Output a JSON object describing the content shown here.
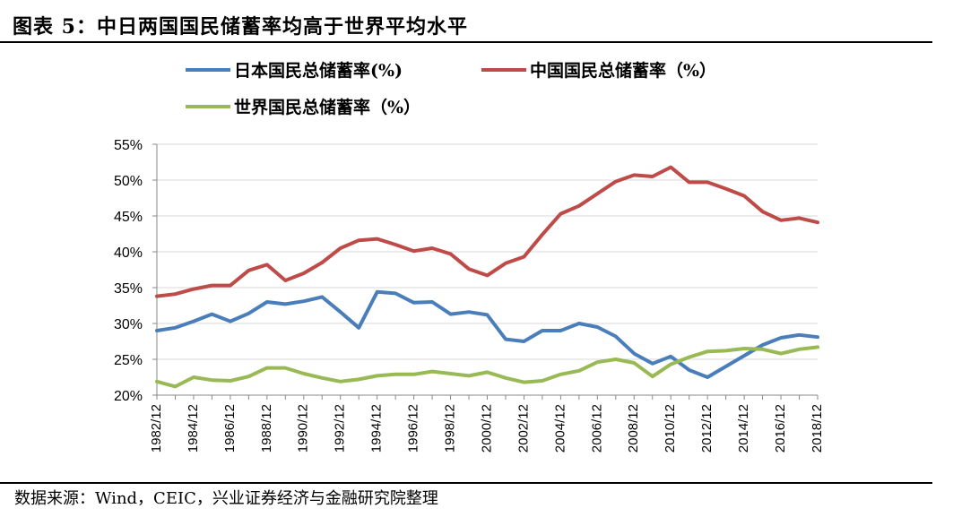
{
  "figure": {
    "title": "图表 5：中日两国国民储蓄率均高于世界平均水平",
    "source": "数据来源：Wind，CEIC，兴业证券经济与金融研究院整理"
  },
  "colors": {
    "japan": "#4a7ebb",
    "china": "#be4b48",
    "world": "#98b954",
    "grid": "#d9d9d9",
    "axis": "#888888"
  },
  "chart_data": {
    "type": "line",
    "x": [
      1982,
      1983,
      1984,
      1985,
      1986,
      1987,
      1988,
      1989,
      1990,
      1991,
      1992,
      1993,
      1994,
      1995,
      1996,
      1997,
      1998,
      1999,
      2000,
      2001,
      2002,
      2003,
      2004,
      2005,
      2006,
      2007,
      2008,
      2009,
      2010,
      2011,
      2012,
      2013,
      2014,
      2015,
      2016,
      2017,
      2018
    ],
    "xtick_labels": [
      "1982/12",
      "1984/12",
      "1986/12",
      "1988/12",
      "1990/12",
      "1992/12",
      "1994/12",
      "1996/12",
      "1998/12",
      "2000/12",
      "2002/12",
      "2004/12",
      "2006/12",
      "2008/12",
      "2010/12",
      "2012/12",
      "2014/12",
      "2016/12",
      "2018/12"
    ],
    "ytick_labels": [
      "20%",
      "25%",
      "30%",
      "35%",
      "40%",
      "45%",
      "50%",
      "55%"
    ],
    "ylim": [
      20,
      55
    ],
    "yticks": [
      20,
      25,
      30,
      35,
      40,
      45,
      50,
      55
    ],
    "grid": true,
    "legend_position": "top",
    "series": [
      {
        "name": "日本国民总储蓄率(%)",
        "key": "japan",
        "values": [
          29.0,
          29.4,
          30.3,
          31.3,
          30.3,
          31.4,
          33.0,
          32.7,
          33.1,
          33.7,
          31.6,
          29.4,
          34.4,
          34.2,
          32.9,
          33.0,
          31.3,
          31.6,
          31.2,
          27.8,
          27.5,
          29.0,
          29.0,
          30.0,
          29.5,
          28.2,
          25.8,
          24.4,
          25.4,
          23.5,
          22.5,
          24.0,
          25.5,
          27.0,
          28.0,
          28.4,
          28.1
        ]
      },
      {
        "name": "中国国民总储蓄率（%）",
        "key": "china",
        "values": [
          33.8,
          34.1,
          34.8,
          35.3,
          35.3,
          37.4,
          38.2,
          36.0,
          37.0,
          38.5,
          40.5,
          41.6,
          41.8,
          41.0,
          40.1,
          40.5,
          39.7,
          37.6,
          36.7,
          38.4,
          39.3,
          42.4,
          45.3,
          46.4,
          48.1,
          49.8,
          50.7,
          50.5,
          51.8,
          49.7,
          49.7,
          48.8,
          47.8,
          45.6,
          44.4,
          44.7,
          44.1
        ]
      },
      {
        "name": "世界国民总储蓄率（%）",
        "key": "world",
        "values": [
          21.9,
          21.2,
          22.5,
          22.1,
          22.0,
          22.6,
          23.8,
          23.8,
          23.0,
          22.4,
          21.9,
          22.2,
          22.7,
          22.9,
          22.9,
          23.3,
          23.0,
          22.7,
          23.2,
          22.4,
          21.8,
          22.0,
          22.9,
          23.4,
          24.6,
          25.0,
          24.5,
          22.6,
          24.3,
          25.3,
          26.1,
          26.2,
          26.5,
          26.4,
          25.8,
          26.4,
          26.7
        ]
      }
    ]
  }
}
